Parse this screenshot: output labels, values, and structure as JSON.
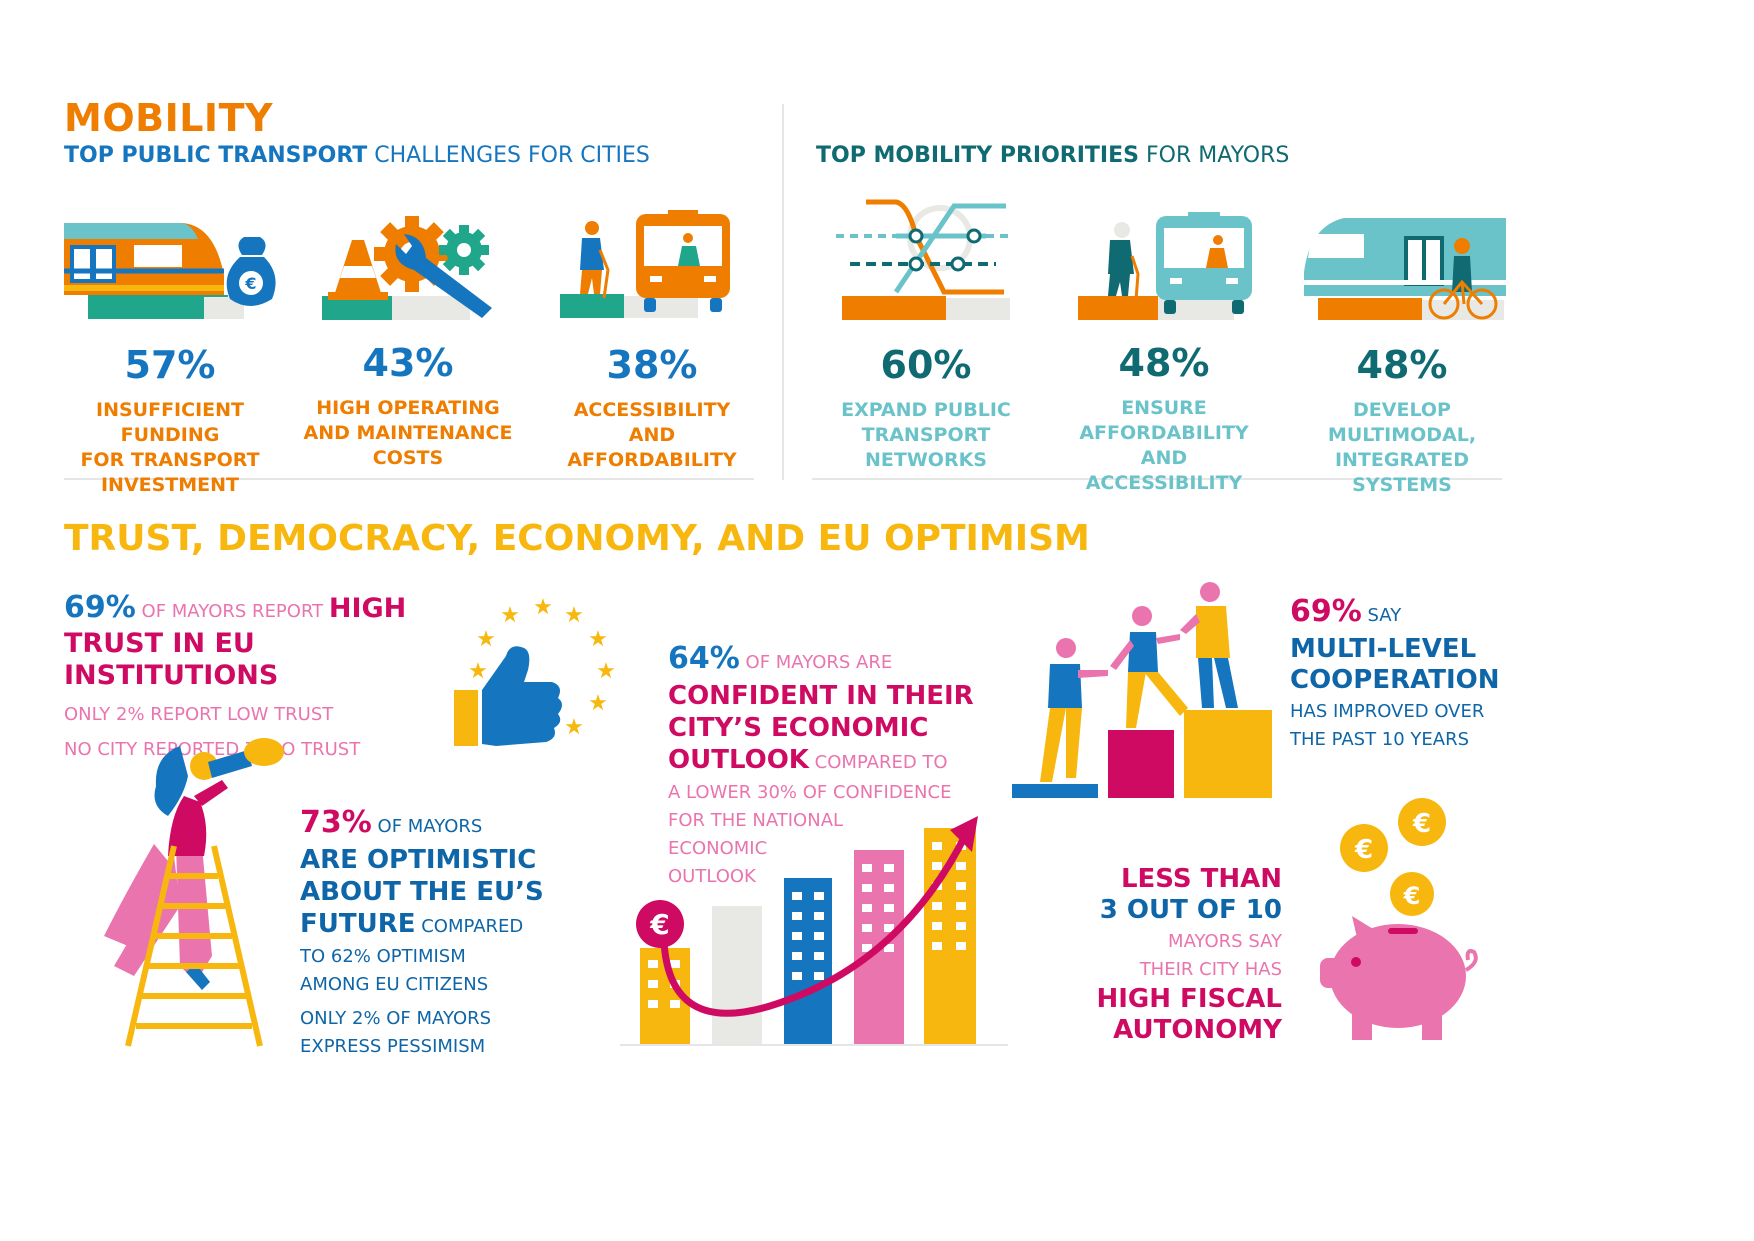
{
  "colors": {
    "orange": "#EE7D00",
    "blue": "#1576BF",
    "teal": "#0F6A72",
    "light_teal": "#6BC3CA",
    "yellow": "#F7B70F",
    "magenta": "#CF0A62",
    "pink": "#EA74AE",
    "green": "#1FA68B"
  },
  "mobility": {
    "title": "MOBILITY",
    "challenges": {
      "heading_bold": "TOP PUBLIC TRANSPORT",
      "heading_rest": " CHALLENGES FOR CITIES",
      "items": [
        {
          "icon": "train-money-icon",
          "percent": "57%",
          "label_lines": [
            "INSUFFICIENT FUNDING",
            "FOR TRANSPORT",
            "INVESTMENT"
          ]
        },
        {
          "icon": "gears-wrench-cone-icon",
          "percent": "43%",
          "label_lines": [
            "HIGH OPERATING",
            "AND MAINTENANCE",
            "COSTS"
          ]
        },
        {
          "icon": "elderly-bus-icon",
          "percent": "38%",
          "label_lines": [
            "ACCESSIBILITY AND",
            "AFFORDABILITY"
          ]
        }
      ]
    },
    "priorities": {
      "heading_bold": "TOP MOBILITY PRIORITIES",
      "heading_rest": " FOR MAYORS",
      "items": [
        {
          "icon": "transit-map-icon",
          "percent": "60%",
          "label_lines": [
            "EXPAND PUBLIC",
            "TRANSPORT",
            "NETWORKS"
          ]
        },
        {
          "icon": "elderly-bus-icon",
          "percent": "48%",
          "label_lines": [
            "ENSURE",
            "AFFORDABILITY",
            "AND ACCESSIBILITY"
          ]
        },
        {
          "icon": "train-bicycle-icon",
          "percent": "48%",
          "label_lines": [
            "DEVELOP",
            "MULTIMODAL,",
            "INTEGRATED SYSTEMS"
          ]
        }
      ]
    }
  },
  "trust": {
    "title": "TRUST, DEMOCRACY, ECONOMY, AND EU OPTIMISM",
    "eu_trust": {
      "percent": "69%",
      "line1_rest": " OF MAYORS REPORT ",
      "line1_bold": "HIGH",
      "line2_bold": "TRUST IN EU INSTITUTIONS",
      "note1": "ONLY 2% REPORT LOW TRUST",
      "note2": "NO CITY REPORTED ZERO TRUST"
    },
    "optimism": {
      "percent": "73%",
      "line1_rest": " OF MAYORS",
      "bold_lines": [
        "ARE OPTIMISTIC",
        "ABOUT THE EU’S"
      ],
      "bold_last": "FUTURE",
      "last_rest": " COMPARED",
      "rest_lines": [
        "TO 62% OPTIMISM",
        "AMONG EU CITIZENS"
      ],
      "note_lines": [
        "ONLY 2% OF MAYORS",
        "EXPRESS PESSIMISM"
      ]
    },
    "economy": {
      "percent": "64%",
      "line1_rest": " OF MAYORS ARE",
      "bold_lines": [
        "CONFIDENT IN THEIR",
        "CITY’S ECONOMIC"
      ],
      "bold_last": "OUTLOOK",
      "last_rest": " COMPARED TO",
      "rest_lines": [
        "A LOWER 30% OF CONFIDENCE",
        "FOR THE NATIONAL",
        "ECONOMIC",
        "OUTLOOK"
      ],
      "euro_symbol": "€"
    },
    "cooperation": {
      "percent": "69%",
      "line1_rest": " SAY",
      "bold_lines": [
        "MULTI-LEVEL",
        "COOPERATION"
      ],
      "rest_lines": [
        "HAS IMPROVED OVER",
        "THE PAST 10 YEARS"
      ]
    },
    "fiscal": {
      "bold_top": [
        "LESS THAN",
        "3 OUT OF 10"
      ],
      "rest_lines": [
        "MAYORS SAY",
        "THEIR CITY HAS"
      ],
      "bold_bottom": [
        "HIGH FISCAL",
        "AUTONOMY"
      ],
      "euro_symbol": "€"
    }
  }
}
